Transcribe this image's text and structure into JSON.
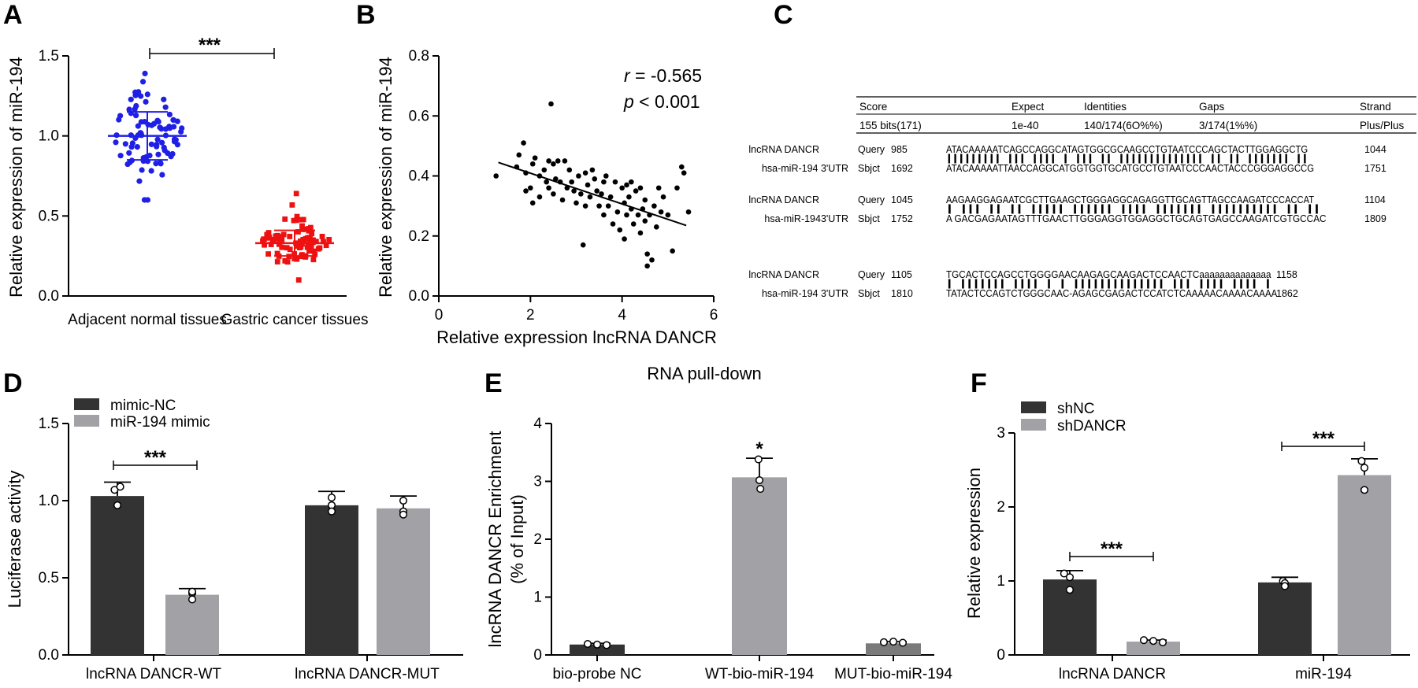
{
  "chart_data": [
    {
      "panel": "A",
      "type": "scatter",
      "title": "",
      "ylabel": "Relative expression of miR-194",
      "xlabel": "",
      "categories": [
        "Adjacent normal tissues",
        "Gastric cancer tissues"
      ],
      "ylim": [
        0,
        1.5
      ],
      "yticks": [
        "0.0",
        "0.5",
        "1.0",
        "1.5"
      ],
      "series": [
        {
          "name": "Adjacent normal tissues",
          "color": "#1f1fe6",
          "marker": "circle",
          "mean": 1.0,
          "sd": 0.15,
          "min": 0.6,
          "max": 1.39
        },
        {
          "name": "Gastric cancer tissues",
          "color": "#ee1111",
          "marker": "square",
          "mean": 0.33,
          "sd": 0.08,
          "min": 0.1,
          "max": 0.64
        }
      ],
      "significance": "***"
    },
    {
      "panel": "B",
      "type": "scatter",
      "title": "",
      "xlabel": "Relative expression lncRNA DANCR",
      "ylabel": "Relative expression of miR-194",
      "xlim": [
        0,
        6
      ],
      "ylim": [
        0,
        0.8
      ],
      "xticks": [
        "0",
        "2",
        "4",
        "6"
      ],
      "yticks": [
        "0.0",
        "0.2",
        "0.4",
        "0.6",
        "0.8"
      ],
      "r_label": "r",
      "r_value": " = -0.565",
      "p_label": "p",
      "p_value": " < 0.001",
      "fit": {
        "x": [
          1.3,
          5.4
        ],
        "y": [
          0.445,
          0.235
        ]
      },
      "points": [
        [
          1.25,
          0.4
        ],
        [
          1.7,
          0.43
        ],
        [
          1.75,
          0.47
        ],
        [
          1.85,
          0.51
        ],
        [
          1.9,
          0.35
        ],
        [
          1.9,
          0.41
        ],
        [
          2.0,
          0.36
        ],
        [
          2.05,
          0.31
        ],
        [
          2.05,
          0.44
        ],
        [
          2.1,
          0.46
        ],
        [
          2.2,
          0.4
        ],
        [
          2.2,
          0.33
        ],
        [
          2.3,
          0.42
        ],
        [
          2.35,
          0.38
        ],
        [
          2.4,
          0.36
        ],
        [
          2.4,
          0.45
        ],
        [
          2.45,
          0.64
        ],
        [
          2.5,
          0.34
        ],
        [
          2.5,
          0.44
        ],
        [
          2.55,
          0.39
        ],
        [
          2.6,
          0.45
        ],
        [
          2.65,
          0.38
        ],
        [
          2.7,
          0.32
        ],
        [
          2.75,
          0.45
        ],
        [
          2.8,
          0.36
        ],
        [
          2.85,
          0.42
        ],
        [
          2.9,
          0.38
        ],
        [
          2.95,
          0.35
        ],
        [
          3.0,
          0.31
        ],
        [
          3.05,
          0.4
        ],
        [
          3.1,
          0.34
        ],
        [
          3.15,
          0.17
        ],
        [
          3.2,
          0.3
        ],
        [
          3.2,
          0.41
        ],
        [
          3.25,
          0.37
        ],
        [
          3.3,
          0.33
        ],
        [
          3.35,
          0.42
        ],
        [
          3.4,
          0.39
        ],
        [
          3.45,
          0.35
        ],
        [
          3.5,
          0.3
        ],
        [
          3.55,
          0.34
        ],
        [
          3.6,
          0.27
        ],
        [
          3.6,
          0.38
        ],
        [
          3.65,
          0.4
        ],
        [
          3.7,
          0.3
        ],
        [
          3.75,
          0.33
        ],
        [
          3.8,
          0.24
        ],
        [
          3.85,
          0.38
        ],
        [
          3.9,
          0.28
        ],
        [
          3.95,
          0.22
        ],
        [
          4.0,
          0.36
        ],
        [
          4.05,
          0.31
        ],
        [
          4.05,
          0.19
        ],
        [
          4.1,
          0.27
        ],
        [
          4.1,
          0.37
        ],
        [
          4.15,
          0.33
        ],
        [
          4.2,
          0.29
        ],
        [
          4.2,
          0.38
        ],
        [
          4.25,
          0.24
        ],
        [
          4.3,
          0.35
        ],
        [
          4.35,
          0.27
        ],
        [
          4.4,
          0.21
        ],
        [
          4.4,
          0.36
        ],
        [
          4.45,
          0.29
        ],
        [
          4.5,
          0.25
        ],
        [
          4.5,
          0.32
        ],
        [
          4.55,
          0.14
        ],
        [
          4.55,
          0.1
        ],
        [
          4.6,
          0.27
        ],
        [
          4.65,
          0.12
        ],
        [
          4.7,
          0.3
        ],
        [
          4.75,
          0.23
        ],
        [
          4.8,
          0.36
        ],
        [
          4.85,
          0.28
        ],
        [
          4.9,
          0.33
        ],
        [
          5.0,
          0.27
        ],
        [
          5.1,
          0.15
        ],
        [
          5.2,
          0.36
        ],
        [
          5.3,
          0.43
        ],
        [
          5.35,
          0.41
        ],
        [
          5.45,
          0.28
        ]
      ]
    },
    {
      "panel": "D",
      "type": "bar",
      "title": "",
      "ylabel": "Luciferase activity",
      "categories": [
        "lncRNA DANCR-WT",
        "lncRNA DANCR-MUT"
      ],
      "ylim": [
        0,
        1.5
      ],
      "yticks": [
        "0.0",
        "0.5",
        "1.0",
        "1.5"
      ],
      "series": [
        {
          "name": "mimic-NC",
          "color": "#333333",
          "values": [
            1.03,
            0.97
          ],
          "err": [
            0.09,
            0.09
          ],
          "points": [
            [
              1.07,
              0.97,
              1.09
            ],
            [
              0.97,
              1.02,
              0.93
            ]
          ]
        },
        {
          "name": "miR-194 mimic",
          "color": "#a2a2a6",
          "values": [
            0.39,
            0.95
          ],
          "err": [
            0.04,
            0.08
          ],
          "points": [
            [
              0.4,
              0.41,
              0.36
            ],
            [
              0.93,
              1.0,
              0.91
            ]
          ]
        }
      ],
      "significance": [
        "***"
      ]
    },
    {
      "panel": "E",
      "type": "bar",
      "title": "RNA pull-down",
      "ylabel": "lncRNA DANCR Enrichment",
      "ylabel2": "(% of Input)",
      "categories": [
        "bio-probe NC",
        "WT-bio-miR-194",
        "MUT-bio-miR-194"
      ],
      "ylim": [
        0,
        4
      ],
      "yticks": [
        "0",
        "1",
        "2",
        "3",
        "4"
      ],
      "series": [
        {
          "name": "Enrichment",
          "colors": [
            "#333333",
            "#a2a2a6",
            "#7a7a7a"
          ],
          "values": [
            0.18,
            3.07,
            0.2
          ],
          "err": [
            0.02,
            0.33,
            0.03
          ],
          "points": [
            [
              0.19,
              0.18,
              0.17
            ],
            [
              3.38,
              3.02,
              2.87
            ],
            [
              0.22,
              0.23,
              0.21
            ]
          ]
        }
      ],
      "significance": [
        "*"
      ]
    },
    {
      "panel": "F",
      "type": "bar",
      "title": "",
      "ylabel": "Relative expression",
      "categories": [
        "lncRNA DANCR",
        "miR-194"
      ],
      "ylim": [
        0,
        3
      ],
      "yticks": [
        "0",
        "1",
        "2",
        "3"
      ],
      "series": [
        {
          "name": "shNC",
          "color": "#333333",
          "values": [
            1.02,
            0.98
          ],
          "err": [
            0.12,
            0.07
          ],
          "points": [
            [
              1.1,
              1.05,
              0.88
            ],
            [
              1.0,
              0.97,
              0.93
            ]
          ]
        },
        {
          "name": "shDANCR",
          "color": "#a2a2a6",
          "values": [
            0.18,
            2.43
          ],
          "err": [
            0.02,
            0.22
          ],
          "points": [
            [
              0.2,
              0.19,
              0.17
            ],
            [
              2.62,
              2.53,
              2.23
            ]
          ]
        }
      ],
      "significance": [
        "***",
        "***"
      ]
    }
  ],
  "panel_c": {
    "header": [
      "Score",
      "Expect",
      "Identities",
      "Gaps",
      "Strand"
    ],
    "values": [
      "155 bits(171)",
      "1e-40",
      "140/174(6O%%)",
      "3/174(1%%)",
      "Plus/Plus"
    ],
    "blocks": [
      {
        "q_name": "lncRNA DANCR",
        "q_type": "Query",
        "q_start": "985",
        "q_seq": "ATACAAAAATCAGCCAGGCATAGTGGCGCAAGCCTGTAATCCCAGCTACTTGGAGGCTG",
        "q_end": "1044",
        "match": "||||||||| ||| |||| | ||| || |||||||||||||| || || ||||||| ||",
        "s_name": "hsa-miR-194 3'UTR",
        "s_type": "Sbjct",
        "s_start": "1692",
        "s_seq": "ATACAAAAATTAACCAGGCATGGTGGTGCATGCCTGTAATCCCAACTACCCGGGAGGCCG",
        "s_end": "1751"
      },
      {
        "q_name": "lncRNA DANCR",
        "q_type": "Query",
        "q_start": "1045",
        "q_seq": "AAGAAGGAGAATCGCTTGAAGCTGGGAGGCAGAGGTTGCAGTTAGCCAAGATCCCACCAT",
        "q_end": "1104",
        "match": "|   ||| ||  ||   ||||| |||||| ||||  ||||||| ||||||||||  || ||",
        "s_name": "hsa-miR-1943'UTR",
        "s_type": "Sbjct",
        "s_start": "1752",
        "s_seq": "A    GACGAGAATAGTTTGAACTTGGGAGGTGGAGGCTGCAGTGAGCCAAGATCGTGCCAC",
        "s_end": "1809"
      },
      {
        "q_name": "lncRNA DANCR",
        "q_type": "Query",
        "q_start": "1105",
        "q_seq": "TGCACTCCAGCCTGGGGAACAAGAGCAAGACTCCAACTCaaaaaaaaaaaaaa",
        "q_end": "1158",
        "match": "|  ||||||| |||| | |  ||||||||||||||  ||| |||| ||||  |",
        "s_name": "hsa-miR-194 3'UTR",
        "s_type": "Sbjct",
        "s_start": "1810",
        "s_seq": "TATACTCCAGTCTGGGCAAC-AGAGCGAGACTCCATCTCAAAAACAAAACAAAA",
        "s_end": "1862"
      }
    ]
  },
  "panel_letters": [
    "A",
    "B",
    "C",
    "D",
    "E",
    "F"
  ]
}
